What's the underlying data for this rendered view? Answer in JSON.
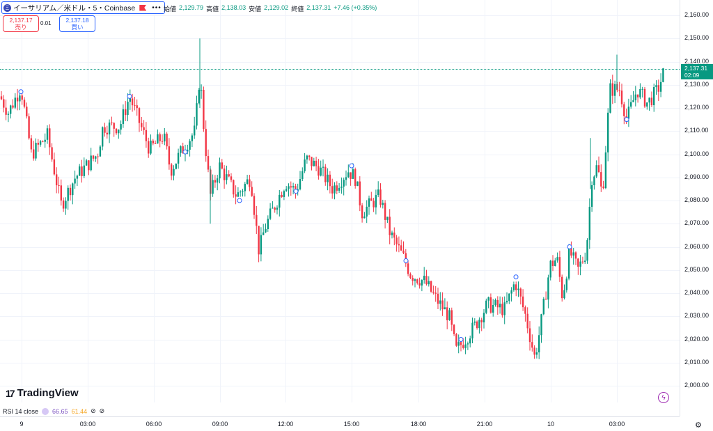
{
  "header": {
    "symbol_title": "イーサリアム／米ドル・5・Coinbase",
    "coin_glyph": "Ξ",
    "more_glyph": "•••",
    "ohlc": [
      {
        "label": "始値",
        "value": "2,129.79"
      },
      {
        "label": "高値",
        "value": "2,138.03"
      },
      {
        "label": "安値",
        "value": "2,129.02"
      },
      {
        "label": "終値",
        "value": "2,137.31"
      },
      {
        "label": "",
        "value": "+7.46 (+0.35%)"
      }
    ]
  },
  "trade": {
    "sell_price": "2,137.17",
    "sell_label": "売り",
    "spread": "0.01",
    "buy_price": "2,137.18",
    "buy_label": "買い"
  },
  "price_scale": {
    "ticks": [
      "2,160.00",
      "2,150.00",
      "2,140.00",
      "2,130.00",
      "2,120.00",
      "2,110.00",
      "2,100.00",
      "2,090.00",
      "2,080.00",
      "2,070.00",
      "2,060.00",
      "2,050.00",
      "2,040.00",
      "2,030.00",
      "2,020.00",
      "2,010.00",
      "2,000.00"
    ],
    "current_price": "2,137.31",
    "countdown": "02:09"
  },
  "time_scale": {
    "ticks": [
      "9",
      "03:00",
      "06:00",
      "09:00",
      "12:00",
      "15:00",
      "18:00",
      "21:00",
      "10",
      "03:00"
    ]
  },
  "logo": {
    "text": "TradingView",
    "mark": "17"
  },
  "indicator": {
    "label": "RSI 14 close",
    "value1": "66.65",
    "value2": "61.44",
    "hide_glyph": "⊘",
    "remove_glyph": "⊘"
  },
  "colors": {
    "up": "#089981",
    "down": "#f23645",
    "accent": "#2962ff"
  },
  "chart_data": {
    "type": "candlestick",
    "symbol": "ETH/USD",
    "interval": "5",
    "ylim": [
      1995,
      2165
    ],
    "current_price": 2137.31,
    "path_anchors": [
      [
        0,
        2125
      ],
      [
        12,
        2118
      ],
      [
        30,
        2129
      ],
      [
        45,
        2100
      ],
      [
        68,
        2108
      ],
      [
        88,
        2078
      ],
      [
        108,
        2090
      ],
      [
        140,
        2100
      ],
      [
        148,
        2112
      ],
      [
        172,
        2112
      ],
      [
        186,
        2125
      ],
      [
        215,
        2102
      ],
      [
        235,
        2108
      ],
      [
        245,
        2093
      ],
      [
        262,
        2102
      ],
      [
        280,
        2110
      ],
      [
        287,
        2135
      ],
      [
        293,
        2110
      ],
      [
        302,
        2082
      ],
      [
        315,
        2095
      ],
      [
        340,
        2082
      ],
      [
        360,
        2090
      ],
      [
        372,
        2058
      ],
      [
        380,
        2068
      ],
      [
        395,
        2078
      ],
      [
        410,
        2088
      ],
      [
        425,
        2084
      ],
      [
        440,
        2098
      ],
      [
        458,
        2094
      ],
      [
        478,
        2085
      ],
      [
        500,
        2093
      ],
      [
        510,
        2090
      ],
      [
        520,
        2075
      ],
      [
        545,
        2082
      ],
      [
        560,
        2066
      ],
      [
        580,
        2055
      ],
      [
        590,
        2048
      ],
      [
        610,
        2045
      ],
      [
        625,
        2038
      ],
      [
        645,
        2030
      ],
      [
        655,
        2015
      ],
      [
        680,
        2025
      ],
      [
        700,
        2035
      ],
      [
        725,
        2033
      ],
      [
        740,
        2045
      ],
      [
        755,
        2030
      ],
      [
        768,
        2012
      ],
      [
        776,
        2025
      ],
      [
        790,
        2052
      ],
      [
        800,
        2055
      ],
      [
        808,
        2038
      ],
      [
        818,
        2058
      ],
      [
        830,
        2050
      ],
      [
        842,
        2058
      ],
      [
        850,
        2090
      ],
      [
        858,
        2095
      ],
      [
        865,
        2082
      ],
      [
        876,
        2128
      ],
      [
        890,
        2128
      ],
      [
        900,
        2115
      ],
      [
        915,
        2128
      ],
      [
        930,
        2122
      ],
      [
        945,
        2128
      ],
      [
        955,
        2137
      ]
    ]
  }
}
